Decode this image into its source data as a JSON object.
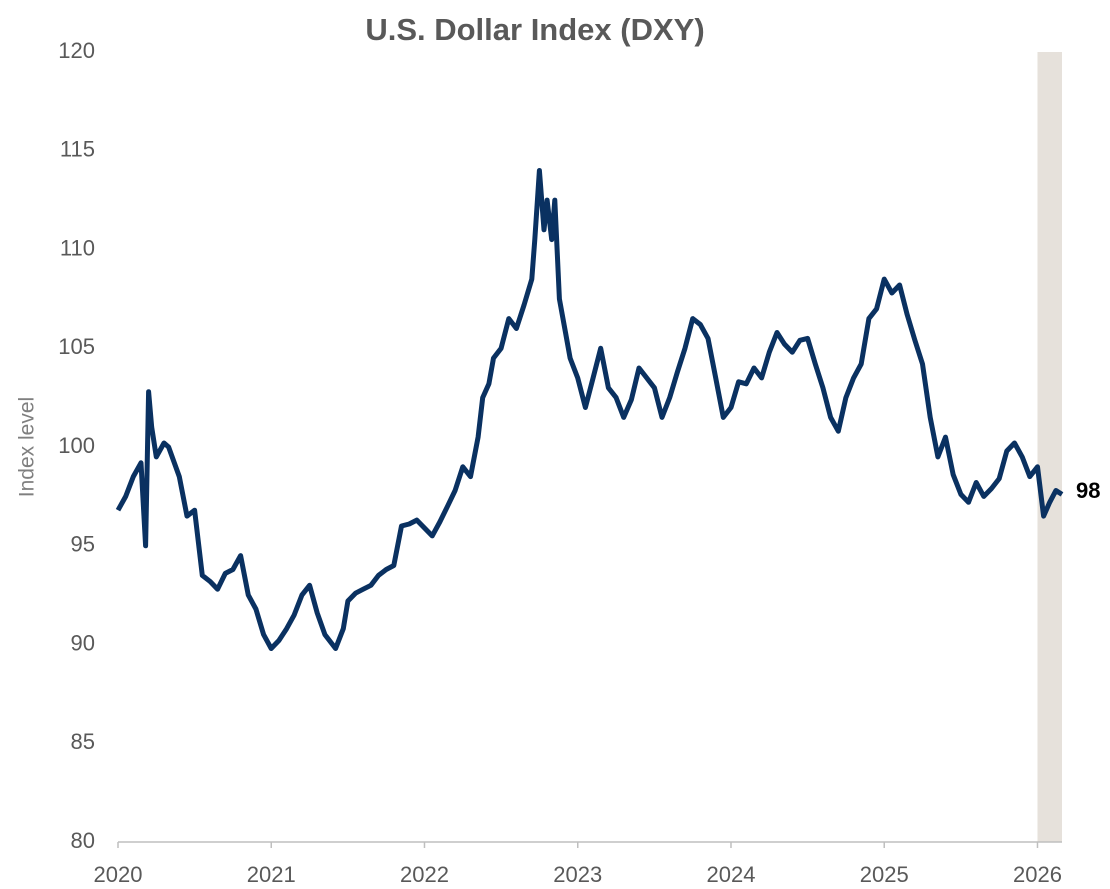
{
  "chart_data": {
    "type": "line",
    "title": "U.S. Dollar Index (DXY)",
    "y_label": "Index level",
    "end_label": "98",
    "shaded_x": [
      2026,
      2026.16
    ],
    "shade_color": "#e6e1db",
    "x": [
      2020.0,
      2020.05,
      2020.1,
      2020.15,
      2020.18,
      2020.2,
      2020.22,
      2020.25,
      2020.3,
      2020.33,
      2020.4,
      2020.45,
      2020.5,
      2020.55,
      2020.6,
      2020.65,
      2020.7,
      2020.75,
      2020.8,
      2020.85,
      2020.9,
      2020.95,
      2021.0,
      2021.05,
      2021.1,
      2021.15,
      2021.2,
      2021.25,
      2021.3,
      2021.35,
      2021.42,
      2021.47,
      2021.5,
      2021.55,
      2021.6,
      2021.65,
      2021.7,
      2021.75,
      2021.8,
      2021.85,
      2021.9,
      2021.95,
      2022.0,
      2022.05,
      2022.1,
      2022.15,
      2022.2,
      2022.25,
      2022.3,
      2022.35,
      2022.38,
      2022.42,
      2022.45,
      2022.5,
      2022.55,
      2022.6,
      2022.65,
      2022.7,
      2022.72,
      2022.75,
      2022.78,
      2022.8,
      2022.83,
      2022.85,
      2022.88,
      2022.92,
      2022.95,
      2023.0,
      2023.05,
      2023.1,
      2023.15,
      2023.2,
      2023.25,
      2023.3,
      2023.35,
      2023.4,
      2023.45,
      2023.5,
      2023.55,
      2023.6,
      2023.65,
      2023.7,
      2023.75,
      2023.8,
      2023.85,
      2023.9,
      2023.95,
      2024.0,
      2024.05,
      2024.1,
      2024.15,
      2024.2,
      2024.25,
      2024.3,
      2024.35,
      2024.4,
      2024.45,
      2024.5,
      2024.55,
      2024.6,
      2024.65,
      2024.7,
      2024.75,
      2024.8,
      2024.85,
      2024.9,
      2024.95,
      2025.0,
      2025.05,
      2025.1,
      2025.15,
      2025.2,
      2025.25,
      2025.3,
      2025.35,
      2025.4,
      2025.45,
      2025.5,
      2025.55,
      2025.6,
      2025.65,
      2025.7,
      2025.75,
      2025.8,
      2025.85,
      2025.9,
      2025.95,
      2026.0,
      2026.04,
      2026.08,
      2026.12,
      2026.16
    ],
    "series": [
      {
        "name": "DXY",
        "color": "#0a3161",
        "values": [
          96.8,
          97.5,
          98.5,
          99.2,
          95,
          102.8,
          101,
          99.5,
          100.2,
          100,
          98.5,
          96.5,
          96.8,
          93.5,
          93.2,
          92.8,
          93.6,
          93.8,
          94.5,
          92.5,
          91.8,
          90.5,
          89.8,
          90.2,
          90.8,
          91.5,
          92.5,
          93,
          91.6,
          90.5,
          89.8,
          90.8,
          92.2,
          92.6,
          92.8,
          93,
          93.5,
          93.8,
          94,
          96,
          96.1,
          96.3,
          95.9,
          95.5,
          96.2,
          97,
          97.8,
          99,
          98.5,
          100.5,
          102.5,
          103.2,
          104.5,
          105,
          106.5,
          106,
          107.2,
          108.5,
          110.5,
          114,
          111,
          112.5,
          110.5,
          112.5,
          107.5,
          105.8,
          104.5,
          103.5,
          102,
          103.5,
          105,
          103,
          102.5,
          101.5,
          102.4,
          104,
          103.5,
          103,
          101.5,
          102.5,
          103.8,
          105,
          106.5,
          106.2,
          105.5,
          103.5,
          101.5,
          102,
          103.3,
          103.2,
          104,
          103.5,
          104.8,
          105.8,
          105.2,
          104.8,
          105.4,
          105.5,
          104.2,
          103,
          101.5,
          100.8,
          102.5,
          103.5,
          104.2,
          106.5,
          107,
          108.5,
          107.8,
          108.2,
          106.7,
          105.4,
          104.2,
          101.5,
          99.5,
          100.5,
          98.6,
          97.6,
          97.2,
          98.2,
          97.5,
          97.9,
          98.4,
          99.8,
          100.2,
          99.5,
          98.5,
          99,
          96.5,
          97.2,
          97.8,
          97.6
        ]
      }
    ],
    "xlim": [
      2020,
      2026.16
    ],
    "xticks": [
      2020,
      2021,
      2022,
      2023,
      2024,
      2025,
      2026
    ],
    "ylim": [
      80,
      120
    ],
    "yticks": [
      80,
      85,
      90,
      95,
      100,
      105,
      110,
      115,
      120
    ]
  }
}
